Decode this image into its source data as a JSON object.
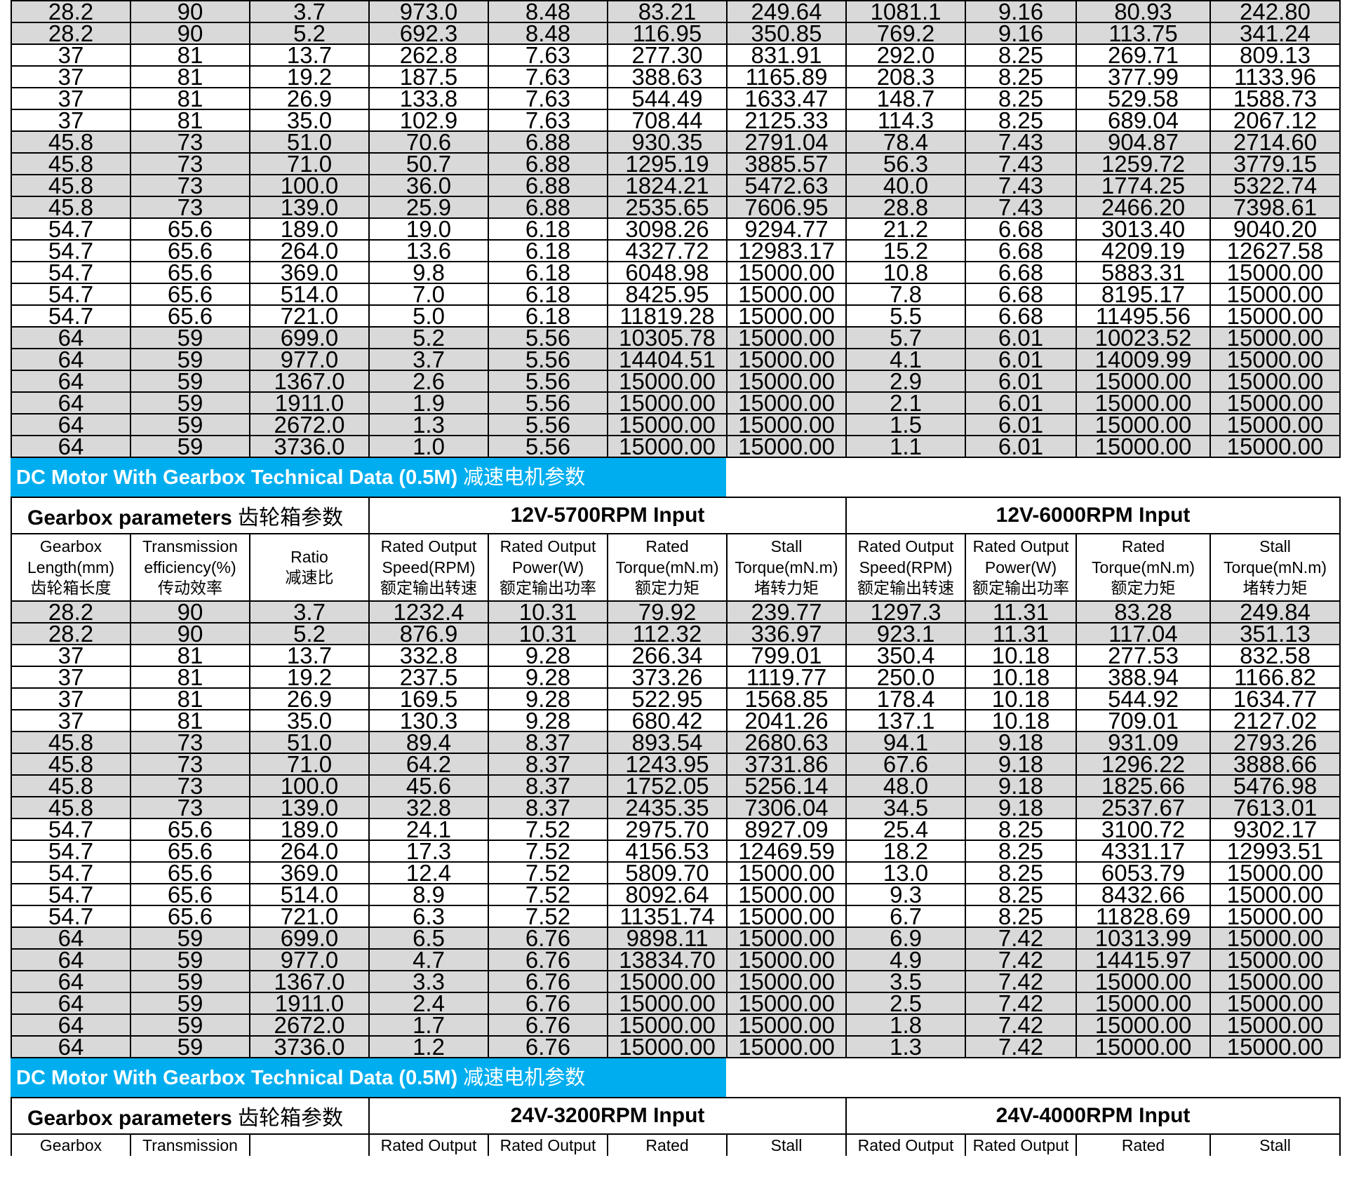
{
  "section1": {
    "rows": [
      [
        "28.2",
        "90",
        "3.7",
        "973.0",
        "8.48",
        "83.21",
        "249.64",
        "1081.1",
        "9.16",
        "80.93",
        "242.80"
      ],
      [
        "28.2",
        "90",
        "5.2",
        "692.3",
        "8.48",
        "116.95",
        "350.85",
        "769.2",
        "9.16",
        "113.75",
        "341.24"
      ],
      [
        "37",
        "81",
        "13.7",
        "262.8",
        "7.63",
        "277.30",
        "831.91",
        "292.0",
        "8.25",
        "269.71",
        "809.13"
      ],
      [
        "37",
        "81",
        "19.2",
        "187.5",
        "7.63",
        "388.63",
        "1165.89",
        "208.3",
        "8.25",
        "377.99",
        "1133.96"
      ],
      [
        "37",
        "81",
        "26.9",
        "133.8",
        "7.63",
        "544.49",
        "1633.47",
        "148.7",
        "8.25",
        "529.58",
        "1588.73"
      ],
      [
        "37",
        "81",
        "35.0",
        "102.9",
        "7.63",
        "708.44",
        "2125.33",
        "114.3",
        "8.25",
        "689.04",
        "2067.12"
      ],
      [
        "45.8",
        "73",
        "51.0",
        "70.6",
        "6.88",
        "930.35",
        "2791.04",
        "78.4",
        "7.43",
        "904.87",
        "2714.60"
      ],
      [
        "45.8",
        "73",
        "71.0",
        "50.7",
        "6.88",
        "1295.19",
        "3885.57",
        "56.3",
        "7.43",
        "1259.72",
        "3779.15"
      ],
      [
        "45.8",
        "73",
        "100.0",
        "36.0",
        "6.88",
        "1824.21",
        "5472.63",
        "40.0",
        "7.43",
        "1774.25",
        "5322.74"
      ],
      [
        "45.8",
        "73",
        "139.0",
        "25.9",
        "6.88",
        "2535.65",
        "7606.95",
        "28.8",
        "7.43",
        "2466.20",
        "7398.61"
      ],
      [
        "54.7",
        "65.6",
        "189.0",
        "19.0",
        "6.18",
        "3098.26",
        "9294.77",
        "21.2",
        "6.68",
        "3013.40",
        "9040.20"
      ],
      [
        "54.7",
        "65.6",
        "264.0",
        "13.6",
        "6.18",
        "4327.72",
        "12983.17",
        "15.2",
        "6.68",
        "4209.19",
        "12627.58"
      ],
      [
        "54.7",
        "65.6",
        "369.0",
        "9.8",
        "6.18",
        "6048.98",
        "15000.00",
        "10.8",
        "6.68",
        "5883.31",
        "15000.00"
      ],
      [
        "54.7",
        "65.6",
        "514.0",
        "7.0",
        "6.18",
        "8425.95",
        "15000.00",
        "7.8",
        "6.68",
        "8195.17",
        "15000.00"
      ],
      [
        "54.7",
        "65.6",
        "721.0",
        "5.0",
        "6.18",
        "11819.28",
        "15000.00",
        "5.5",
        "6.68",
        "11495.56",
        "15000.00"
      ],
      [
        "64",
        "59",
        "699.0",
        "5.2",
        "5.56",
        "10305.78",
        "15000.00",
        "5.7",
        "6.01",
        "10023.52",
        "15000.00"
      ],
      [
        "64",
        "59",
        "977.0",
        "3.7",
        "5.56",
        "14404.51",
        "15000.00",
        "4.1",
        "6.01",
        "14009.99",
        "15000.00"
      ],
      [
        "64",
        "59",
        "1367.0",
        "2.6",
        "5.56",
        "15000.00",
        "15000.00",
        "2.9",
        "6.01",
        "15000.00",
        "15000.00"
      ],
      [
        "64",
        "59",
        "1911.0",
        "1.9",
        "5.56",
        "15000.00",
        "15000.00",
        "2.1",
        "6.01",
        "15000.00",
        "15000.00"
      ],
      [
        "64",
        "59",
        "2672.0",
        "1.3",
        "5.56",
        "15000.00",
        "15000.00",
        "1.5",
        "6.01",
        "15000.00",
        "15000.00"
      ],
      [
        "64",
        "59",
        "3736.0",
        "1.0",
        "5.56",
        "15000.00",
        "15000.00",
        "1.1",
        "6.01",
        "15000.00",
        "15000.00"
      ]
    ]
  },
  "section2": {
    "banner_en": "DC Motor With Gearbox Technical Data (0.5M)",
    "banner_zh": "减速电机参数",
    "gearbox_label": "Gearbox parameters",
    "gearbox_label_zh": "齿轮箱参数",
    "input_a": "12V-5700RPM Input",
    "input_b": "12V-6000RPM Input",
    "rows": [
      [
        "28.2",
        "90",
        "3.7",
        "1232.4",
        "10.31",
        "79.92",
        "239.77",
        "1297.3",
        "11.31",
        "83.28",
        "249.84"
      ],
      [
        "28.2",
        "90",
        "5.2",
        "876.9",
        "10.31",
        "112.32",
        "336.97",
        "923.1",
        "11.31",
        "117.04",
        "351.13"
      ],
      [
        "37",
        "81",
        "13.7",
        "332.8",
        "9.28",
        "266.34",
        "799.01",
        "350.4",
        "10.18",
        "277.53",
        "832.58"
      ],
      [
        "37",
        "81",
        "19.2",
        "237.5",
        "9.28",
        "373.26",
        "1119.77",
        "250.0",
        "10.18",
        "388.94",
        "1166.82"
      ],
      [
        "37",
        "81",
        "26.9",
        "169.5",
        "9.28",
        "522.95",
        "1568.85",
        "178.4",
        "10.18",
        "544.92",
        "1634.77"
      ],
      [
        "37",
        "81",
        "35.0",
        "130.3",
        "9.28",
        "680.42",
        "2041.26",
        "137.1",
        "10.18",
        "709.01",
        "2127.02"
      ],
      [
        "45.8",
        "73",
        "51.0",
        "89.4",
        "8.37",
        "893.54",
        "2680.63",
        "94.1",
        "9.18",
        "931.09",
        "2793.26"
      ],
      [
        "45.8",
        "73",
        "71.0",
        "64.2",
        "8.37",
        "1243.95",
        "3731.86",
        "67.6",
        "9.18",
        "1296.22",
        "3888.66"
      ],
      [
        "45.8",
        "73",
        "100.0",
        "45.6",
        "8.37",
        "1752.05",
        "5256.14",
        "48.0",
        "9.18",
        "1825.66",
        "5476.98"
      ],
      [
        "45.8",
        "73",
        "139.0",
        "32.8",
        "8.37",
        "2435.35",
        "7306.04",
        "34.5",
        "9.18",
        "2537.67",
        "7613.01"
      ],
      [
        "54.7",
        "65.6",
        "189.0",
        "24.1",
        "7.52",
        "2975.70",
        "8927.09",
        "25.4",
        "8.25",
        "3100.72",
        "9302.17"
      ],
      [
        "54.7",
        "65.6",
        "264.0",
        "17.3",
        "7.52",
        "4156.53",
        "12469.59",
        "18.2",
        "8.25",
        "4331.17",
        "12993.51"
      ],
      [
        "54.7",
        "65.6",
        "369.0",
        "12.4",
        "7.52",
        "5809.70",
        "15000.00",
        "13.0",
        "8.25",
        "6053.79",
        "15000.00"
      ],
      [
        "54.7",
        "65.6",
        "514.0",
        "8.9",
        "7.52",
        "8092.64",
        "15000.00",
        "9.3",
        "8.25",
        "8432.66",
        "15000.00"
      ],
      [
        "54.7",
        "65.6",
        "721.0",
        "6.3",
        "7.52",
        "11351.74",
        "15000.00",
        "6.7",
        "8.25",
        "11828.69",
        "15000.00"
      ],
      [
        "64",
        "59",
        "699.0",
        "6.5",
        "6.76",
        "9898.11",
        "15000.00",
        "6.9",
        "7.42",
        "10313.99",
        "15000.00"
      ],
      [
        "64",
        "59",
        "977.0",
        "4.7",
        "6.76",
        "13834.70",
        "15000.00",
        "4.9",
        "7.42",
        "14415.97",
        "15000.00"
      ],
      [
        "64",
        "59",
        "1367.0",
        "3.3",
        "6.76",
        "15000.00",
        "15000.00",
        "3.5",
        "7.42",
        "15000.00",
        "15000.00"
      ],
      [
        "64",
        "59",
        "1911.0",
        "2.4",
        "6.76",
        "15000.00",
        "15000.00",
        "2.5",
        "7.42",
        "15000.00",
        "15000.00"
      ],
      [
        "64",
        "59",
        "2672.0",
        "1.7",
        "6.76",
        "15000.00",
        "15000.00",
        "1.8",
        "7.42",
        "15000.00",
        "15000.00"
      ],
      [
        "64",
        "59",
        "3736.0",
        "1.2",
        "6.76",
        "15000.00",
        "15000.00",
        "1.3",
        "7.42",
        "15000.00",
        "15000.00"
      ]
    ]
  },
  "section3": {
    "banner_en": "DC Motor With Gearbox Technical Data (0.5M)",
    "banner_zh": "减速电机参数",
    "gearbox_label": "Gearbox parameters",
    "gearbox_label_zh": "齿轮箱参数",
    "input_a": "24V-3200RPM Input",
    "input_b": "24V-4000RPM Input",
    "partial_headers": [
      "Gearbox",
      "Transmission",
      "",
      "Rated Output",
      "Rated Output",
      "Rated",
      "Stall",
      "Rated Output",
      "Rated Output",
      "Rated",
      "Stall"
    ]
  },
  "column_headers": [
    {
      "en1": "Gearbox",
      "en2": "Length(mm)",
      "zh": "齿轮箱长度"
    },
    {
      "en1": "Transmission",
      "en2": "efficiency(%)",
      "zh": "传动效率"
    },
    {
      "en1": "Ratio",
      "en2": "",
      "zh": "减速比"
    },
    {
      "en1": "Rated Output",
      "en2": "Speed(RPM)",
      "zh": "额定输出转速"
    },
    {
      "en1": "Rated Output",
      "en2": "Power(W)",
      "zh": "额定输出功率"
    },
    {
      "en1": "Rated",
      "en2": "Torque(mN.m)",
      "zh": "额定力矩"
    },
    {
      "en1": "Stall",
      "en2": "Torque(mN.m)",
      "zh": "堵转力矩"
    },
    {
      "en1": "Rated Output",
      "en2": "Speed(RPM)",
      "zh": "额定输出转速"
    },
    {
      "en1": "Rated Output",
      "en2": "Power(W)",
      "zh": "额定输出功率"
    },
    {
      "en1": "Rated",
      "en2": "Torque(mN.m)",
      "zh": "额定力矩"
    },
    {
      "en1": "Stall",
      "en2": "Torque(mN.m)",
      "zh": "堵转力矩"
    }
  ],
  "colors": {
    "banner": "#00aeef",
    "shade": "#d9d9d9",
    "border": "#000000"
  }
}
